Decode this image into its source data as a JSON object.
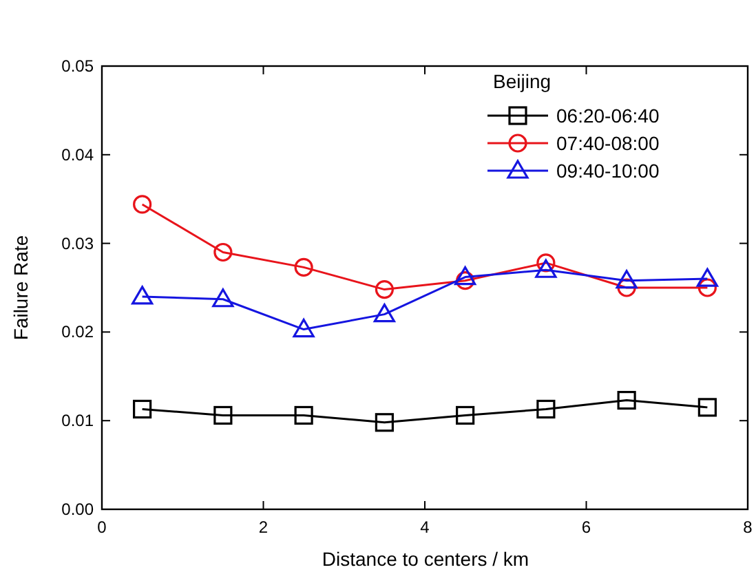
{
  "chart_data": {
    "type": "line",
    "xlabel": "Distance to centers / km",
    "ylabel": "Failure Rate",
    "legend_title": "Beijing",
    "legend": "top right",
    "x": [
      0.5,
      1.5,
      2.5,
      3.5,
      4.5,
      5.5,
      6.5,
      7.5
    ],
    "series": [
      {
        "name": "06:20-06:40",
        "color": "#000000",
        "marker": "square",
        "values": [
          0.0113,
          0.0106,
          0.0106,
          0.0098,
          0.0106,
          0.0113,
          0.0123,
          0.0115
        ]
      },
      {
        "name": "07:40-08:00",
        "color": "#e8141b",
        "marker": "circle",
        "values": [
          0.0344,
          0.029,
          0.0273,
          0.0248,
          0.0258,
          0.0278,
          0.025,
          0.025
        ]
      },
      {
        "name": "09:40-10:00",
        "color": "#1515e0",
        "marker": "triangle",
        "values": [
          0.024,
          0.0237,
          0.0203,
          0.022,
          0.0262,
          0.027,
          0.0258,
          0.026
        ]
      }
    ],
    "xlim": [
      0,
      8
    ],
    "xticks": [
      0,
      2,
      4,
      6,
      8
    ],
    "ylim": [
      0,
      0.05
    ],
    "yticks": [
      {
        "value": 0,
        "label": "0.00"
      },
      {
        "value": 0.01,
        "label": "0.01"
      },
      {
        "value": 0.02,
        "label": "0.02"
      },
      {
        "value": 0.03,
        "label": "0.03"
      },
      {
        "value": 0.04,
        "label": "0.04"
      },
      {
        "value": 0.05,
        "label": "0.05"
      }
    ]
  }
}
